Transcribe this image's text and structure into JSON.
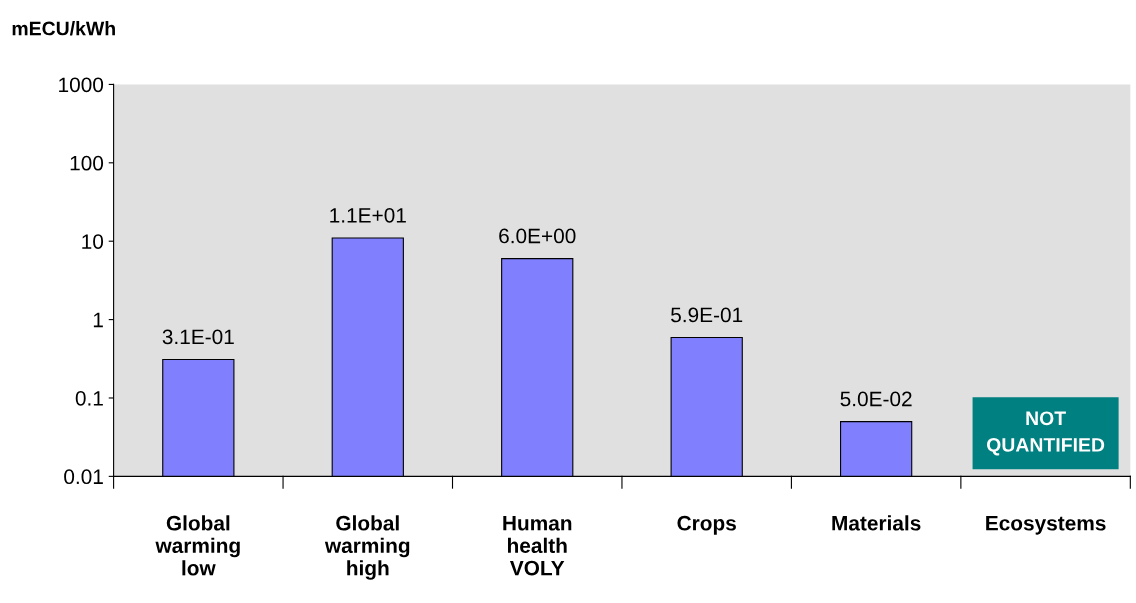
{
  "chart_data": {
    "type": "bar",
    "ylabel": "mECU/kWh",
    "categories": [
      "Global\nwarming\nlow",
      "Global\nwarming\nhigh",
      "Human\nhealth\nVOLY",
      "Crops",
      "Materials",
      "Ecosystems"
    ],
    "values": [
      0.31,
      11,
      6.0,
      0.59,
      0.05,
      null
    ],
    "value_labels": [
      "3.1E-01",
      "1.1E+01",
      "6.0E+00",
      "5.9E-01",
      "5.0E-02",
      null
    ],
    "color": "#8080ff",
    "log": true,
    "ylim": [
      0.01,
      1000
    ],
    "yticks": [
      0.01,
      0.1,
      1,
      10,
      100,
      1000
    ],
    "grid": false,
    "annotations": [
      "NOT\nQUANTIFIED"
    ]
  }
}
